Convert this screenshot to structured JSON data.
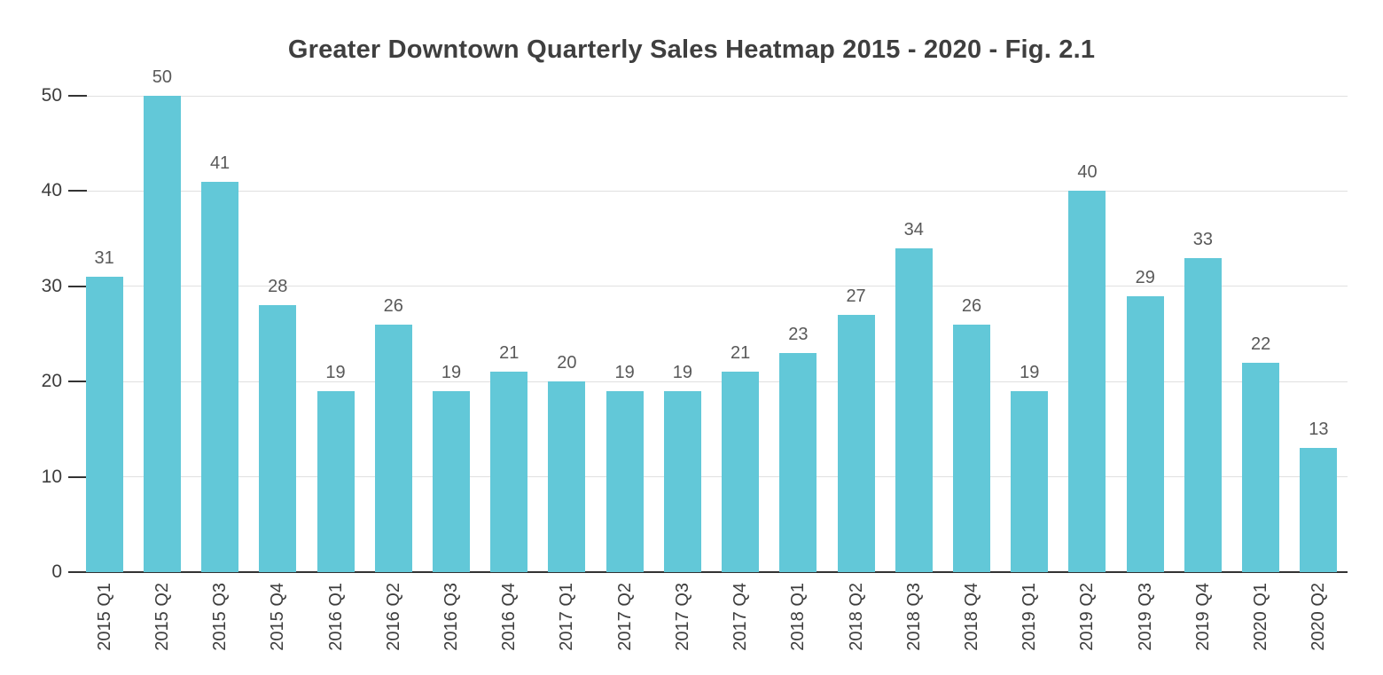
{
  "chart_data": {
    "type": "bar",
    "title": "Greater Downtown Quarterly Sales Heatmap 2015 - 2020 - Fig. 2.1",
    "categories": [
      "2015 Q1",
      "2015 Q2",
      "2015 Q3",
      "2015 Q4",
      "2016 Q1",
      "2016 Q2",
      "2016 Q3",
      "2016 Q4",
      "2017 Q1",
      "2017 Q2",
      "2017 Q3",
      "2017 Q4",
      "2018 Q1",
      "2018 Q2",
      "2018 Q3",
      "2018 Q4",
      "2019 Q1",
      "2019 Q2",
      "2019 Q3",
      "2019 Q4",
      "2020 Q1",
      "2020 Q2"
    ],
    "values": [
      31,
      50,
      41,
      28,
      19,
      26,
      19,
      21,
      20,
      19,
      19,
      21,
      23,
      27,
      34,
      26,
      19,
      40,
      29,
      33,
      22,
      13
    ],
    "value_labels_shown": true,
    "xlabel": "",
    "ylabel": "",
    "ylim": [
      0,
      50
    ],
    "yticks": [
      0,
      10,
      20,
      30,
      40,
      50
    ],
    "grid": true,
    "legend": "none",
    "x_label_rotation_degrees": 90
  },
  "colors": {
    "bar": "#62c8d8",
    "gridline": "#e0e0e0",
    "axis_line": "#333333",
    "value_label": "#595959",
    "axis_label": "#3d3d3d",
    "title": "#3f3f3f",
    "background": "#ffffff"
  }
}
